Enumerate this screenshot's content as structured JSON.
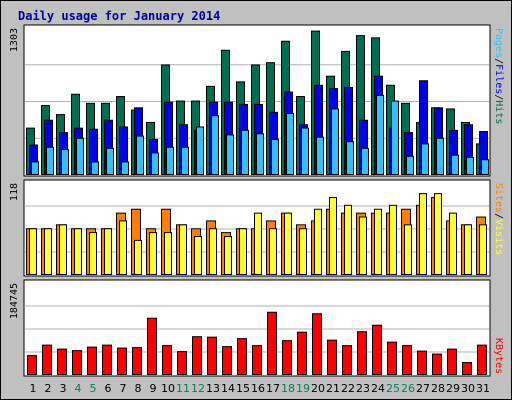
{
  "title": "Daily usage for January 2014",
  "colors": {
    "page_bg": "#c0c0c0",
    "panel_bg": "#ffffff",
    "hits": "#006e50",
    "files": "#0000e6",
    "pages": "#33c0ff",
    "sites": "#ff8000",
    "visits": "#ffff33",
    "kbytes": "#ff0000",
    "weekday_label": "#000000",
    "weekend_label": "#008060"
  },
  "legends": {
    "top": [
      "Pages",
      "/",
      "Files",
      "/",
      "Hits"
    ],
    "middle": [
      "Sites",
      "/",
      "Visits"
    ],
    "bottom": [
      "KBytes"
    ]
  },
  "chart_data": {
    "type": "bar",
    "title": "Daily usage for January 2014",
    "categories": [
      "1",
      "2",
      "3",
      "4",
      "5",
      "6",
      "7",
      "8",
      "9",
      "10",
      "11",
      "12",
      "13",
      "14",
      "15",
      "16",
      "17",
      "18",
      "19",
      "20",
      "21",
      "22",
      "23",
      "24",
      "25",
      "26",
      "27",
      "28",
      "29",
      "30",
      "31"
    ],
    "weekend_days": [
      "4",
      "5",
      "11",
      "12",
      "18",
      "19",
      "25",
      "26"
    ],
    "panels": [
      {
        "name": "top",
        "ymax_label": "1303",
        "ylim": [
          0,
          1303
        ],
        "series": [
          {
            "name": "Hits",
            "values": [
              420,
              620,
              540,
              720,
              640,
              640,
              700,
              580,
              470,
              980,
              660,
              660,
              790,
              1110,
              830,
              980,
              1000,
              1190,
              700,
              1280,
              880,
              1100,
              1240,
              1220,
              800,
              640,
              470,
              600,
              590,
              470,
              280
            ]
          },
          {
            "name": "Files",
            "values": [
              270,
              490,
              380,
              420,
              410,
              490,
              430,
              600,
              320,
              650,
              450,
              400,
              650,
              650,
              630,
              630,
              560,
              740,
              450,
              800,
              770,
              780,
              490,
              880,
              420,
              380,
              840,
              600,
              400,
              450,
              390
            ]
          },
          {
            "name": "Pages",
            "values": [
              120,
              250,
              230,
              330,
              120,
              240,
              120,
              350,
              200,
              250,
              250,
              430,
              530,
              360,
              400,
              370,
              320,
              550,
              420,
              340,
              590,
              300,
              240,
              710,
              660,
              170,
              280,
              330,
              180,
              160,
              140
            ]
          }
        ]
      },
      {
        "name": "middle",
        "ymax_label": "118",
        "ylim": [
          0,
          118
        ],
        "series": [
          {
            "name": "Sites",
            "values": [
              60,
              60,
              65,
              60,
              60,
              60,
              80,
              85,
              60,
              85,
              65,
              60,
              70,
              55,
              60,
              60,
              70,
              80,
              65,
              70,
              85,
              80,
              80,
              80,
              80,
              85,
              90,
              100,
              70,
              65,
              75
            ]
          },
          {
            "name": "Visits",
            "values": [
              60,
              60,
              65,
              60,
              55,
              60,
              70,
              45,
              55,
              55,
              65,
              50,
              60,
              50,
              60,
              80,
              60,
              80,
              60,
              85,
              100,
              90,
              75,
              85,
              90,
              65,
              105,
              105,
              80,
              65,
              65
            ]
          }
        ]
      },
      {
        "name": "bottom",
        "ymax_label": "184745",
        "ylim": [
          0,
          184745
        ],
        "series": [
          {
            "name": "KBytes",
            "values": [
              40000,
              61000,
              53000,
              50000,
              57000,
              61000,
              55000,
              56000,
              115000,
              60000,
              48000,
              78000,
              77000,
              58000,
              74000,
              60000,
              127000,
              70000,
              87000,
              124000,
              71000,
              60000,
              88000,
              101000,
              67000,
              60000,
              49000,
              43000,
              53000,
              26000,
              61000
            ]
          }
        ]
      }
    ]
  }
}
